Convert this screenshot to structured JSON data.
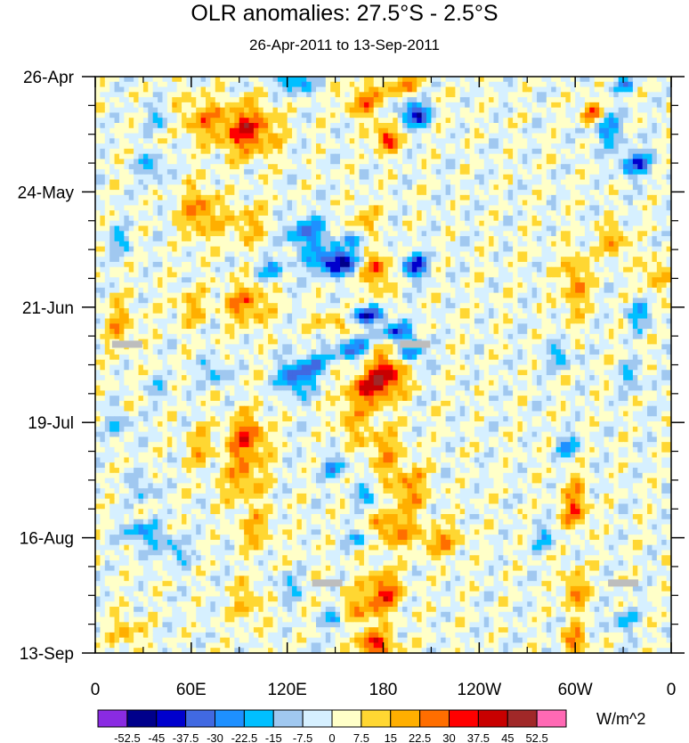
{
  "chart_data": {
    "type": "heatmap",
    "title": "OLR anomalies: 27.5°S - 2.5°S",
    "subtitle": "26-Apr-2011 to 13-Sep-2011",
    "x_axis": {
      "range_deg_east": [
        0,
        360
      ],
      "tick_positions_deg": [
        0,
        60,
        120,
        180,
        240,
        300,
        360
      ],
      "tick_labels": [
        "0",
        "60E",
        "120E",
        "180",
        "120W",
        "60W",
        "0"
      ]
    },
    "y_axis": {
      "range_days": [
        0,
        140
      ],
      "tick_positions_days": [
        0,
        28,
        56,
        84,
        112,
        140
      ],
      "tick_labels": [
        "26-Apr",
        "24-May",
        "21-Jun",
        "19-Jul",
        "16-Aug",
        "13-Sep"
      ],
      "reversed": true
    },
    "colorbar": {
      "units": "W/m^2",
      "levels": [
        "-52.5",
        "-45",
        "-37.5",
        "-30",
        "-22.5",
        "-15",
        "-7.5",
        "0",
        "7.5",
        "15",
        "22.5",
        "30",
        "37.5",
        "45",
        "52.5"
      ],
      "colors": [
        "#8a2be2",
        "#00008b",
        "#0000cd",
        "#4169e1",
        "#1e90ff",
        "#00bfff",
        "#a0c8f0",
        "#d6f0ff",
        "#ffffc8",
        "#ffd732",
        "#ffaf00",
        "#ff6e00",
        "#ff0000",
        "#c80000",
        "#a02828",
        "#ff69b4"
      ]
    },
    "features": [
      {
        "lon": 95,
        "day": 13,
        "v": 34,
        "slon": 18,
        "sday": 6
      },
      {
        "lon": 65,
        "day": 10,
        "v": 18,
        "slon": 14,
        "sday": 5
      },
      {
        "lon": 125,
        "day": 1,
        "v": -28,
        "slon": 10,
        "sday": 3
      },
      {
        "lon": 200,
        "day": 9,
        "v": -42,
        "slon": 9,
        "sday": 3
      },
      {
        "lon": 182,
        "day": 15,
        "v": 36,
        "slon": 7,
        "sday": 3
      },
      {
        "lon": 168,
        "day": 6,
        "v": 22,
        "slon": 12,
        "sday": 4
      },
      {
        "lon": 192,
        "day": 2,
        "v": 20,
        "slon": 12,
        "sday": 3
      },
      {
        "lon": 310,
        "day": 9,
        "v": 30,
        "slon": 6,
        "sday": 3
      },
      {
        "lon": 320,
        "day": 13,
        "v": -24,
        "slon": 10,
        "sday": 4
      },
      {
        "lon": 338,
        "day": 21,
        "v": -34,
        "slon": 10,
        "sday": 3
      },
      {
        "lon": 330,
        "day": 2,
        "v": -20,
        "slon": 8,
        "sday": 2
      },
      {
        "lon": 35,
        "day": 22,
        "v": -22,
        "slon": 8,
        "sday": 3
      },
      {
        "lon": 40,
        "day": 10,
        "v": -15,
        "slon": 8,
        "sday": 3
      },
      {
        "lon": 65,
        "day": 33,
        "v": 24,
        "slon": 12,
        "sday": 6
      },
      {
        "lon": 95,
        "day": 36,
        "v": 16,
        "slon": 14,
        "sday": 5
      },
      {
        "lon": 132,
        "day": 38,
        "v": -30,
        "slon": 14,
        "sday": 4
      },
      {
        "lon": 150,
        "day": 45,
        "v": -48,
        "slon": 14,
        "sday": 3
      },
      {
        "lon": 176,
        "day": 47,
        "v": 30,
        "slon": 8,
        "sday": 5
      },
      {
        "lon": 168,
        "day": 36,
        "v": 18,
        "slon": 8,
        "sday": 5
      },
      {
        "lon": 200,
        "day": 46,
        "v": -40,
        "slon": 8,
        "sday": 3
      },
      {
        "lon": 165,
        "day": 40,
        "v": -26,
        "slon": 10,
        "sday": 2
      },
      {
        "lon": 110,
        "day": 47,
        "v": -20,
        "slon": 10,
        "sday": 3
      },
      {
        "lon": 300,
        "day": 50,
        "v": 22,
        "slon": 8,
        "sday": 8
      },
      {
        "lon": 325,
        "day": 40,
        "v": 20,
        "slon": 8,
        "sday": 4
      },
      {
        "lon": 350,
        "day": 48,
        "v": 18,
        "slon": 8,
        "sday": 4
      },
      {
        "lon": 15,
        "day": 40,
        "v": -18,
        "slon": 8,
        "sday": 3
      },
      {
        "lon": 340,
        "day": 58,
        "v": -22,
        "slon": 8,
        "sday": 3
      },
      {
        "lon": 95,
        "day": 55,
        "v": 24,
        "slon": 14,
        "sday": 5
      },
      {
        "lon": 60,
        "day": 56,
        "v": 16,
        "slon": 10,
        "sday": 4
      },
      {
        "lon": 170,
        "day": 58,
        "v": -38,
        "slon": 12,
        "sday": 2
      },
      {
        "lon": 188,
        "day": 62,
        "v": -34,
        "slon": 10,
        "sday": 2
      },
      {
        "lon": 160,
        "day": 66,
        "v": -28,
        "slon": 12,
        "sday": 3
      },
      {
        "lon": 150,
        "day": 60,
        "v": 18,
        "slon": 12,
        "sday": 3
      },
      {
        "lon": 182,
        "day": 72,
        "v": 36,
        "slon": 12,
        "sday": 5
      },
      {
        "lon": 170,
        "day": 76,
        "v": 28,
        "slon": 14,
        "sday": 4
      },
      {
        "lon": 198,
        "day": 67,
        "v": -30,
        "slon": 8,
        "sday": 3
      },
      {
        "lon": 125,
        "day": 73,
        "v": -36,
        "slon": 10,
        "sday": 4
      },
      {
        "lon": 138,
        "day": 70,
        "v": -22,
        "slon": 8,
        "sday": 3
      },
      {
        "lon": 75,
        "day": 72,
        "v": -20,
        "slon": 8,
        "sday": 3
      },
      {
        "lon": 40,
        "day": 76,
        "v": -18,
        "slon": 6,
        "sday": 2
      },
      {
        "lon": 15,
        "day": 60,
        "v": 16,
        "slon": 10,
        "sday": 6
      },
      {
        "lon": 290,
        "day": 68,
        "v": -20,
        "slon": 8,
        "sday": 3
      },
      {
        "lon": 335,
        "day": 73,
        "v": -18,
        "slon": 8,
        "sday": 3
      },
      {
        "lon": 95,
        "day": 88,
        "v": 30,
        "slon": 12,
        "sday": 6
      },
      {
        "lon": 92,
        "day": 98,
        "v": 20,
        "slon": 12,
        "sday": 5
      },
      {
        "lon": 65,
        "day": 90,
        "v": 14,
        "slon": 10,
        "sday": 5
      },
      {
        "lon": 180,
        "day": 90,
        "v": 18,
        "slon": 10,
        "sday": 6
      },
      {
        "lon": 195,
        "day": 100,
        "v": 22,
        "slon": 12,
        "sday": 6
      },
      {
        "lon": 170,
        "day": 102,
        "v": -24,
        "slon": 8,
        "sday": 2
      },
      {
        "lon": 160,
        "day": 84,
        "v": 16,
        "slon": 10,
        "sday": 5
      },
      {
        "lon": 150,
        "day": 95,
        "v": -22,
        "slon": 8,
        "sday": 3
      },
      {
        "lon": 295,
        "day": 90,
        "v": -20,
        "slon": 8,
        "sday": 3
      },
      {
        "lon": 300,
        "day": 100,
        "v": 14,
        "slon": 8,
        "sday": 5
      },
      {
        "lon": 30,
        "day": 100,
        "v": -16,
        "slon": 8,
        "sday": 3
      },
      {
        "lon": 15,
        "day": 85,
        "v": -15,
        "slon": 8,
        "sday": 3
      },
      {
        "lon": 300,
        "day": 106,
        "v": 24,
        "slon": 8,
        "sday": 4
      },
      {
        "lon": 185,
        "day": 110,
        "v": 26,
        "slon": 12,
        "sday": 4
      },
      {
        "lon": 215,
        "day": 113,
        "v": 20,
        "slon": 14,
        "sday": 4
      },
      {
        "lon": 165,
        "day": 112,
        "v": -18,
        "slon": 10,
        "sday": 2
      },
      {
        "lon": 100,
        "day": 110,
        "v": 16,
        "slon": 12,
        "sday": 5
      },
      {
        "lon": 30,
        "day": 111,
        "v": -26,
        "slon": 10,
        "sday": 3
      },
      {
        "lon": 50,
        "day": 115,
        "v": -20,
        "slon": 8,
        "sday": 3
      },
      {
        "lon": 280,
        "day": 112,
        "v": -15,
        "slon": 8,
        "sday": 3
      },
      {
        "lon": 180,
        "day": 125,
        "v": 30,
        "slon": 12,
        "sday": 5
      },
      {
        "lon": 165,
        "day": 130,
        "v": 18,
        "slon": 12,
        "sday": 4
      },
      {
        "lon": 175,
        "day": 138,
        "v": 34,
        "slon": 12,
        "sday": 3
      },
      {
        "lon": 150,
        "day": 132,
        "v": -24,
        "slon": 8,
        "sday": 2
      },
      {
        "lon": 300,
        "day": 125,
        "v": 22,
        "slon": 8,
        "sday": 5
      },
      {
        "lon": 300,
        "day": 137,
        "v": 26,
        "slon": 8,
        "sday": 3
      },
      {
        "lon": 20,
        "day": 135,
        "v": 18,
        "slon": 10,
        "sday": 4
      },
      {
        "lon": 95,
        "day": 128,
        "v": 16,
        "slon": 10,
        "sday": 5
      },
      {
        "lon": 330,
        "day": 132,
        "v": -18,
        "slon": 8,
        "sday": 3
      },
      {
        "lon": 120,
        "day": 124,
        "v": -16,
        "slon": 8,
        "sday": 3
      }
    ],
    "missing_data_marks": [
      {
        "lon": 20,
        "day": 65
      },
      {
        "lon": 200,
        "day": 65
      },
      {
        "lon": 145,
        "day": 123
      },
      {
        "lon": 330,
        "day": 123
      }
    ]
  }
}
